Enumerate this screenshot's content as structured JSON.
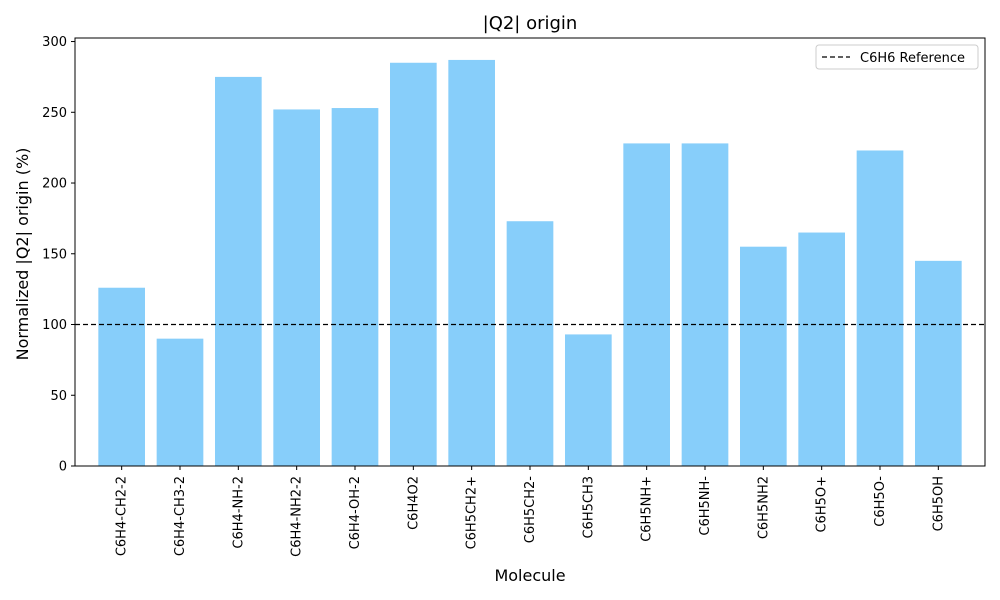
{
  "chart_data": {
    "type": "bar",
    "title": "|Q2| origin",
    "xlabel": "Molecule",
    "ylabel": "Normalized |Q2| origin (%)",
    "categories": [
      "C6H4-CH2-2",
      "C6H4-CH3-2",
      "C6H4-NH-2",
      "C6H4-NH2-2",
      "C6H4-OH-2",
      "C6H4O2",
      "C6H5CH2+",
      "C6H5CH2-",
      "C6H5CH3",
      "C6H5NH+",
      "C6H5NH-",
      "C6H5NH2",
      "C6H5O+",
      "C6H5O-",
      "C6H5OH"
    ],
    "values": [
      126,
      90,
      275,
      252,
      253,
      285,
      287,
      173,
      93,
      228,
      228,
      155,
      165,
      223,
      145
    ],
    "ylim": [
      0,
      302.5
    ],
    "yticks": [
      0,
      50,
      100,
      150,
      200,
      250,
      300
    ],
    "bar_color": "#87CEFA",
    "reference": {
      "label": "C6H6 Reference",
      "value": 100,
      "style": "dashed",
      "color": "#000000"
    },
    "legend_position": "top-right",
    "grid": false
  }
}
